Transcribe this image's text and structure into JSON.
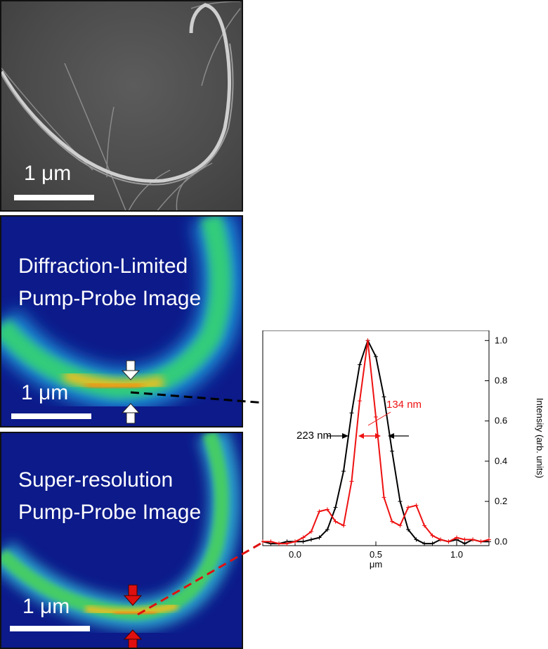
{
  "panels": {
    "sem": {
      "scale_label": "1 μm"
    },
    "diffraction_limited": {
      "title_line1": "Diffraction-Limited",
      "title_line2": "Pump-Probe Image",
      "scale_label": "1 μm"
    },
    "super_resolution": {
      "title_line1": "Super-resolution",
      "title_line2": "Pump-Probe Image",
      "scale_label": "1 μm"
    }
  },
  "colors": {
    "black_series": "#000000",
    "red_series": "#ee1111",
    "panel_background": "#0c1a8a",
    "sem_background": "#4a4a4a"
  },
  "chart_data": {
    "type": "line",
    "xlabel": "μm",
    "ylabel": "Intensity (arb. units)",
    "xlim": [
      -0.2,
      1.2
    ],
    "ylim": [
      -0.02,
      1.05
    ],
    "xticks": [
      "0.0",
      "0.5",
      "1.0"
    ],
    "yticks": [
      "0.0",
      "0.2",
      "0.4",
      "0.6",
      "0.8",
      "1.0"
    ],
    "y_axis_side": "right",
    "annotations": {
      "black_width": "223 nm",
      "red_width": "134 nm"
    },
    "series": [
      {
        "color": "#000000",
        "x": [
          -0.2,
          -0.15,
          -0.1,
          -0.05,
          0.0,
          0.05,
          0.1,
          0.15,
          0.2,
          0.25,
          0.3,
          0.35,
          0.4,
          0.45,
          0.5,
          0.55,
          0.6,
          0.65,
          0.7,
          0.75,
          0.8,
          0.85,
          0.9,
          0.95,
          1.0,
          1.05,
          1.1,
          1.15,
          1.2
        ],
        "y": [
          0.0,
          -0.01,
          -0.01,
          0.0,
          0.0,
          0.0,
          0.01,
          0.02,
          0.06,
          0.17,
          0.35,
          0.64,
          0.88,
          1.0,
          0.92,
          0.72,
          0.45,
          0.2,
          0.06,
          0.01,
          -0.01,
          -0.01,
          0.01,
          0.0,
          0.01,
          -0.01,
          0.01,
          0.0,
          0.0
        ]
      },
      {
        "color": "#ee1111",
        "x": [
          -0.2,
          -0.15,
          -0.1,
          -0.05,
          0.0,
          0.05,
          0.1,
          0.15,
          0.2,
          0.25,
          0.3,
          0.35,
          0.4,
          0.45,
          0.5,
          0.55,
          0.6,
          0.65,
          0.7,
          0.75,
          0.8,
          0.85,
          0.9,
          0.95,
          1.0,
          1.05,
          1.1,
          1.15,
          1.2
        ],
        "y": [
          0.0,
          0.0,
          -0.01,
          -0.01,
          0.0,
          0.02,
          0.05,
          0.15,
          0.16,
          0.1,
          0.08,
          0.3,
          0.7,
          1.0,
          0.62,
          0.22,
          0.1,
          0.08,
          0.17,
          0.18,
          0.08,
          0.03,
          0.01,
          0.0,
          0.02,
          0.01,
          0.01,
          0.0,
          0.01
        ]
      }
    ]
  }
}
